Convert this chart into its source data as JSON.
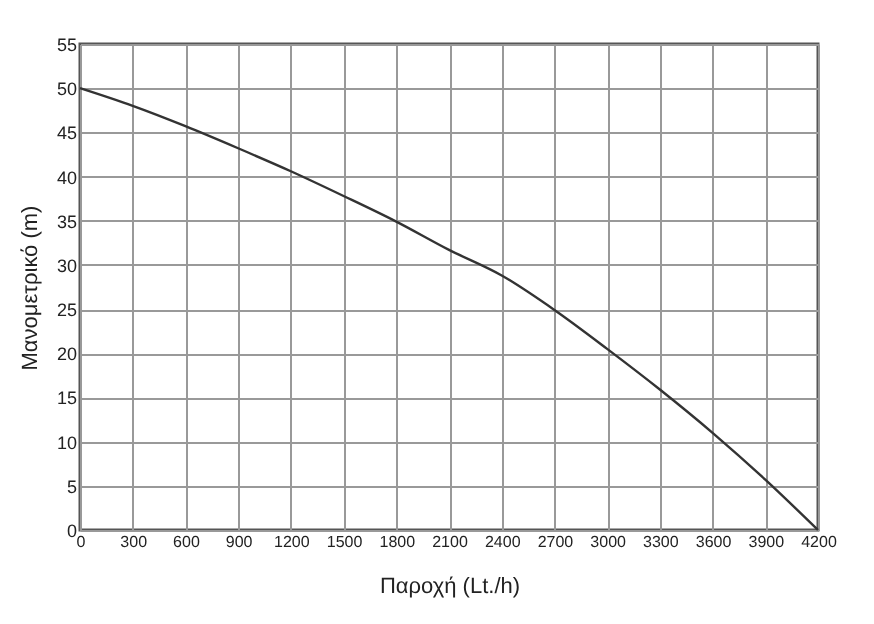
{
  "chart_data": {
    "type": "line",
    "xlabel": "Παροχή (Lt./h)",
    "ylabel": "Μανομετρικό  (m)",
    "x": [
      0,
      300,
      600,
      900,
      1200,
      1500,
      1800,
      2100,
      2400,
      2700,
      3000,
      3300,
      3600,
      3900,
      4200
    ],
    "series": [
      {
        "color": "#333333",
        "values": [
          50,
          48.0,
          45.7,
          43.2,
          40.6,
          37.8,
          34.9,
          31.7,
          28.8,
          24.9,
          20.5,
          15.9,
          11.0,
          5.7,
          0
        ]
      }
    ],
    "xlim": [
      0,
      4200
    ],
    "xticks": [
      0,
      300,
      600,
      900,
      1200,
      1500,
      1800,
      2100,
      2400,
      2700,
      3000,
      3300,
      3600,
      3900,
      4200
    ],
    "ylim": [
      0,
      55
    ],
    "yticks": [
      0,
      5,
      10,
      15,
      20,
      25,
      30,
      35,
      40,
      45,
      50,
      55
    ],
    "grid": true,
    "marker": "none",
    "line_style": "solid"
  }
}
